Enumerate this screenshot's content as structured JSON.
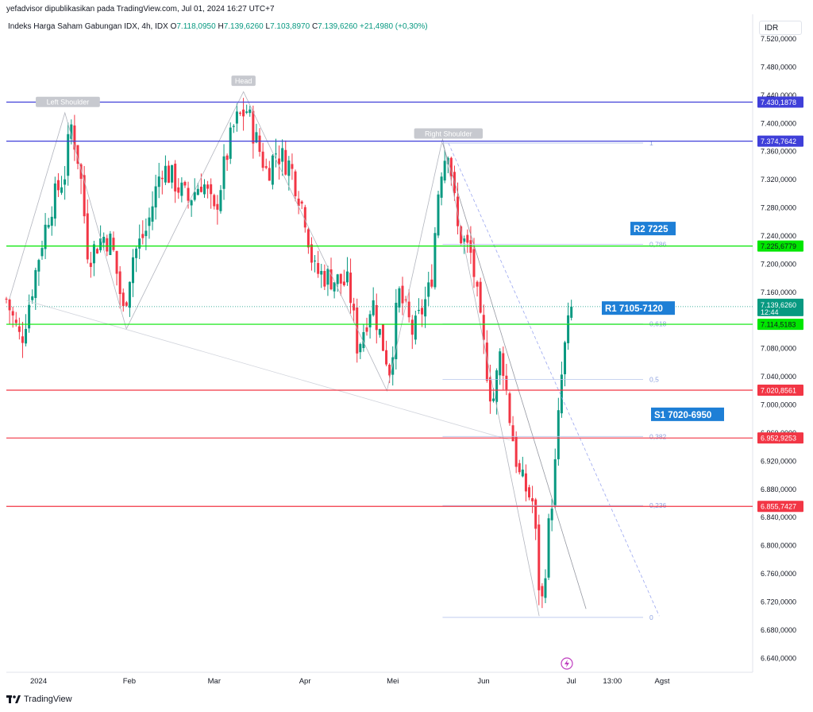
{
  "header": {
    "published": "yefadvisor dipublikasikan pada TradingView.com, Jul 01, 2024 16:27 UTC+7",
    "symbol": "Indeks Harga Saham Gabungan IDX, 4h, IDX",
    "o_label": "O",
    "o": "7.118,0950",
    "h_label": "H",
    "h": "7.139,6260",
    "l_label": "L",
    "l": "7.103,8970",
    "c_label": "C",
    "c": "7.139,6260",
    "change": "+21,4980 (+0,30%)",
    "currency": "IDR"
  },
  "footer": {
    "brand": "TradingView"
  },
  "colors": {
    "up": "#089981",
    "down": "#f23645",
    "green_line": "#00e600",
    "red_line": "#f23645",
    "blue_line": "#3f3fd9",
    "label_blue": "#1e7fd6"
  },
  "chart_data": {
    "type": "candlestick",
    "title": "Indeks Harga Saham Gabungan IDX, 4h, IDX",
    "x_ticks": [
      "2024",
      "Feb",
      "Mar",
      "Apr",
      "Mei",
      "Jun",
      "Jul",
      "13:00",
      "Agst"
    ],
    "y_ticks": [
      "7.520,0000",
      "7.480,0000",
      "7.440,0000",
      "7.400,0000",
      "7.360,0000",
      "7.320,0000",
      "7.280,0000",
      "7.240,0000",
      "7.200,0000",
      "7.160,0000",
      "7.080,0000",
      "7.040,0000",
      "7.000,0000",
      "6.960,0000",
      "6.920,0000",
      "6.880,0000",
      "6.840,0000",
      "6.800,0000",
      "6.760,0000",
      "6.720,0000",
      "6.680,0000",
      "6.640,0000"
    ],
    "ylim": [
      6620,
      7555
    ],
    "price_path": [
      {
        "date": "2023-12-21",
        "v": 7150
      },
      {
        "date": "2023-12-26",
        "v": 7090
      },
      {
        "date": "2023-12-28",
        "v": 7130
      },
      {
        "date": "2024-01-02",
        "v": 7230
      },
      {
        "date": "2024-01-05",
        "v": 7280
      },
      {
        "date": "2024-01-10",
        "v": 7330
      },
      {
        "date": "2024-01-12",
        "v": 7400
      },
      {
        "date": "2024-01-15",
        "v": 7340
      },
      {
        "date": "2024-01-18",
        "v": 7210
      },
      {
        "date": "2024-01-23",
        "v": 7240
      },
      {
        "date": "2024-01-26",
        "v": 7230
      },
      {
        "date": "2024-01-30",
        "v": 7130
      },
      {
        "date": "2024-02-02",
        "v": 7210
      },
      {
        "date": "2024-02-07",
        "v": 7250
      },
      {
        "date": "2024-02-12",
        "v": 7340
      },
      {
        "date": "2024-02-16",
        "v": 7320
      },
      {
        "date": "2024-02-21",
        "v": 7290
      },
      {
        "date": "2024-02-26",
        "v": 7320
      },
      {
        "date": "2024-03-01",
        "v": 7270
      },
      {
        "date": "2024-03-05",
        "v": 7350
      },
      {
        "date": "2024-03-08",
        "v": 7400
      },
      {
        "date": "2024-03-12",
        "v": 7420
      },
      {
        "date": "2024-03-15",
        "v": 7380
      },
      {
        "date": "2024-03-19",
        "v": 7330
      },
      {
        "date": "2024-03-22",
        "v": 7360
      },
      {
        "date": "2024-03-27",
        "v": 7340
      },
      {
        "date": "2024-04-01",
        "v": 7270
      },
      {
        "date": "2024-04-04",
        "v": 7190
      },
      {
        "date": "2024-04-16",
        "v": 7170
      },
      {
        "date": "2024-04-19",
        "v": 7080
      },
      {
        "date": "2024-04-24",
        "v": 7150
      },
      {
        "date": "2024-04-26",
        "v": 7110
      },
      {
        "date": "2024-04-30",
        "v": 7050
      },
      {
        "date": "2024-05-03",
        "v": 7160
      },
      {
        "date": "2024-05-08",
        "v": 7100
      },
      {
        "date": "2024-05-14",
        "v": 7170
      },
      {
        "date": "2024-05-17",
        "v": 7330
      },
      {
        "date": "2024-05-20",
        "v": 7370
      },
      {
        "date": "2024-05-23",
        "v": 7250
      },
      {
        "date": "2024-05-28",
        "v": 7210
      },
      {
        "date": "2024-05-31",
        "v": 7110
      },
      {
        "date": "2024-06-04",
        "v": 7000
      },
      {
        "date": "2024-06-07",
        "v": 7080
      },
      {
        "date": "2024-06-10",
        "v": 6980
      },
      {
        "date": "2024-06-13",
        "v": 6900
      },
      {
        "date": "2024-06-18",
        "v": 6860
      },
      {
        "date": "2024-06-20",
        "v": 6740
      },
      {
        "date": "2024-06-21",
        "v": 6720
      },
      {
        "date": "2024-06-24",
        "v": 6860
      },
      {
        "date": "2024-06-25",
        "v": 6880
      },
      {
        "date": "2024-06-26",
        "v": 6950
      },
      {
        "date": "2024-06-27",
        "v": 7000
      },
      {
        "date": "2024-06-28",
        "v": 7060
      },
      {
        "date": "2024-07-01",
        "v": 7139.626
      }
    ],
    "levels": [
      {
        "price": 7430.1878,
        "label": "7.430,1878",
        "color": "#3f3fd9"
      },
      {
        "price": 7374.7642,
        "label": "7.374,7642",
        "color": "#3f3fd9"
      },
      {
        "price": 7225.6779,
        "label": "7.225,6779",
        "color": "#00e600"
      },
      {
        "price": 7114.5183,
        "label": "7.114,5183",
        "color": "#00e600"
      },
      {
        "price": 7020.8561,
        "label": "7.020,8561",
        "color": "#f23645"
      },
      {
        "price": 6952.9253,
        "label": "6.952,9253",
        "color": "#f23645"
      },
      {
        "price": 6855.7427,
        "label": "6.855,7427",
        "color": "#f23645"
      }
    ],
    "last_price": {
      "price": 7139.626,
      "label": "7.139,6260",
      "countdown": "12:44"
    },
    "fib": [
      {
        "ratio": "1",
        "price": 7372
      },
      {
        "ratio": "0,786",
        "price": 7228
      },
      {
        "ratio": "0,618",
        "price": 7115
      },
      {
        "ratio": "0,5",
        "price": 7036
      },
      {
        "ratio": "0,382",
        "price": 6955
      },
      {
        "ratio": "0,236",
        "price": 6857
      },
      {
        "ratio": "0",
        "price": 6698
      }
    ],
    "zones": [
      {
        "label": "R2 7225",
        "price": 7250
      },
      {
        "label": "R1 7105-7120",
        "price": 7137
      },
      {
        "label": "S1 7020-6950",
        "price": 6986
      }
    ],
    "pattern_labels": [
      {
        "label": "Left Shoulder",
        "date": "2024-01-11",
        "price": 7430
      },
      {
        "label": "Head",
        "date": "2024-03-11",
        "price": 7460
      },
      {
        "label": "Right Shoulder",
        "date": "2024-05-20",
        "price": 7385
      }
    ]
  }
}
